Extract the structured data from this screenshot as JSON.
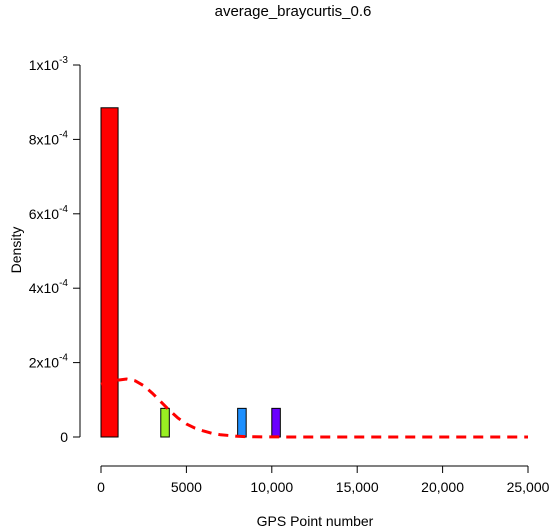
{
  "chart_data": {
    "type": "bar",
    "title": "average_braycurtis_0.6",
    "xlabel": "GPS Point number",
    "ylabel": "Density",
    "xlim": [
      0,
      25000
    ],
    "ylim": [
      0,
      0.001
    ],
    "x_ticks": [
      {
        "value": 0,
        "label": "0"
      },
      {
        "value": 5000,
        "label": "5000"
      },
      {
        "value": 10000,
        "label": "10,000"
      },
      {
        "value": 15000,
        "label": "15,000"
      },
      {
        "value": 20000,
        "label": "20,000"
      },
      {
        "value": 25000,
        "label": "25,000"
      }
    ],
    "y_ticks": [
      {
        "value": 0,
        "label": "0"
      },
      {
        "value": 0.0002,
        "mant": "2x10",
        "exp": "-4"
      },
      {
        "value": 0.0004,
        "mant": "4x10",
        "exp": "-4"
      },
      {
        "value": 0.0006,
        "mant": "6x10",
        "exp": "-4"
      },
      {
        "value": 0.0008,
        "mant": "8x10",
        "exp": "-4"
      },
      {
        "value": 0.001,
        "mant": "1x10",
        "exp": "-3"
      }
    ],
    "bars": [
      {
        "x0": 0,
        "x1": 1000,
        "density": 0.000885,
        "color": "#ff0000"
      },
      {
        "x0": 3500,
        "x1": 4000,
        "density": 7.7e-05,
        "color": "#99ee22"
      },
      {
        "x0": 8000,
        "x1": 8500,
        "density": 7.7e-05,
        "color": "#1e90ff"
      },
      {
        "x0": 10000,
        "x1": 10500,
        "density": 7.7e-05,
        "color": "#6a00ff"
      }
    ],
    "density_curve": {
      "color": "#ff0000",
      "style": "dashed",
      "x": [
        0,
        500,
        1000,
        1500,
        2000,
        2500,
        3000,
        3500,
        4000,
        4500,
        5000,
        5500,
        6000,
        6500,
        7000,
        7500,
        8000,
        8500,
        9000,
        10000,
        12000,
        15000,
        20000,
        25000
      ],
      "y": [
        0.000142,
        0.000148,
        0.000153,
        0.000156,
        0.000151,
        0.000138,
        0.000118,
        9.5e-05,
        7.2e-05,
        5.1e-05,
        3.5e-05,
        2.4e-05,
        1.6e-05,
        1e-05,
        6e-06,
        4e-06,
        2e-06,
        1.2e-06,
        6e-07,
        2e-07,
        5e-08,
        0,
        0,
        0
      ]
    }
  }
}
